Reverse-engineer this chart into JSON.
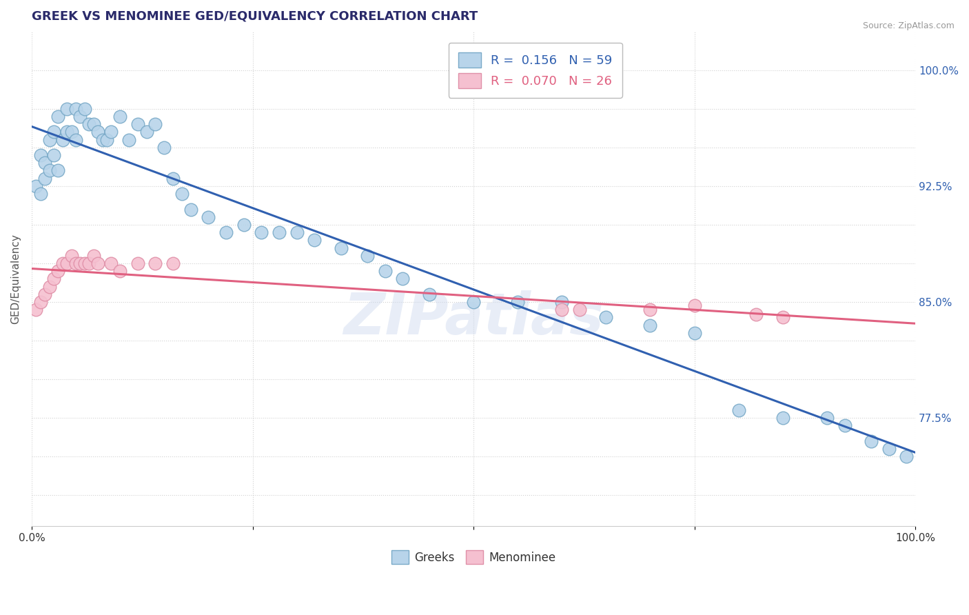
{
  "title": "GREEK VS MENOMINEE GED/EQUIVALENCY CORRELATION CHART",
  "source": "Source: ZipAtlas.com",
  "ylabel": "GED/Equivalency",
  "R_greek": 0.156,
  "N_greek": 59,
  "R_menominee": 0.07,
  "N_menominee": 26,
  "greek_color": "#b8d4ea",
  "greek_edge": "#7aaac8",
  "menominee_color": "#f5c0d0",
  "menominee_edge": "#e090a8",
  "greek_line_color": "#3060b0",
  "menominee_line_color": "#e06080",
  "background_color": "#ffffff",
  "xmin": 0.0,
  "xmax": 1.0,
  "ymin": 0.705,
  "ymax": 1.025,
  "ytick_positions": [
    0.725,
    0.75,
    0.775,
    0.8,
    0.825,
    0.85,
    0.875,
    0.9,
    0.925,
    0.95,
    0.975,
    1.0
  ],
  "ytick_labels": [
    "",
    "",
    "77.5%",
    "",
    "",
    "85.0%",
    "",
    "",
    "92.5%",
    "",
    "",
    "100.0%"
  ],
  "greek_x": [
    0.005,
    0.01,
    0.01,
    0.015,
    0.015,
    0.02,
    0.02,
    0.025,
    0.025,
    0.03,
    0.03,
    0.035,
    0.04,
    0.04,
    0.045,
    0.05,
    0.05,
    0.055,
    0.06,
    0.065,
    0.07,
    0.075,
    0.08,
    0.085,
    0.09,
    0.1,
    0.11,
    0.12,
    0.13,
    0.14,
    0.15,
    0.16,
    0.17,
    0.18,
    0.2,
    0.22,
    0.24,
    0.26,
    0.28,
    0.3,
    0.32,
    0.35,
    0.38,
    0.4,
    0.42,
    0.45,
    0.5,
    0.55,
    0.6,
    0.65,
    0.7,
    0.75,
    0.8,
    0.85,
    0.9,
    0.92,
    0.95,
    0.97,
    0.99
  ],
  "greek_y": [
    0.925,
    0.92,
    0.945,
    0.93,
    0.94,
    0.935,
    0.955,
    0.945,
    0.96,
    0.935,
    0.97,
    0.955,
    0.96,
    0.975,
    0.96,
    0.955,
    0.975,
    0.97,
    0.975,
    0.965,
    0.965,
    0.96,
    0.955,
    0.955,
    0.96,
    0.97,
    0.955,
    0.965,
    0.96,
    0.965,
    0.95,
    0.93,
    0.92,
    0.91,
    0.905,
    0.895,
    0.9,
    0.895,
    0.895,
    0.895,
    0.89,
    0.885,
    0.88,
    0.87,
    0.865,
    0.855,
    0.85,
    0.85,
    0.85,
    0.84,
    0.835,
    0.83,
    0.78,
    0.775,
    0.775,
    0.77,
    0.76,
    0.755,
    0.75
  ],
  "menominee_x": [
    0.005,
    0.01,
    0.015,
    0.02,
    0.025,
    0.03,
    0.035,
    0.04,
    0.045,
    0.05,
    0.055,
    0.06,
    0.065,
    0.07,
    0.075,
    0.09,
    0.1,
    0.12,
    0.14,
    0.16,
    0.6,
    0.62,
    0.7,
    0.75,
    0.82,
    0.85
  ],
  "menominee_y": [
    0.845,
    0.85,
    0.855,
    0.86,
    0.865,
    0.87,
    0.875,
    0.875,
    0.88,
    0.875,
    0.875,
    0.875,
    0.875,
    0.88,
    0.875,
    0.875,
    0.87,
    0.875,
    0.875,
    0.875,
    0.845,
    0.845,
    0.845,
    0.848,
    0.842,
    0.84
  ]
}
